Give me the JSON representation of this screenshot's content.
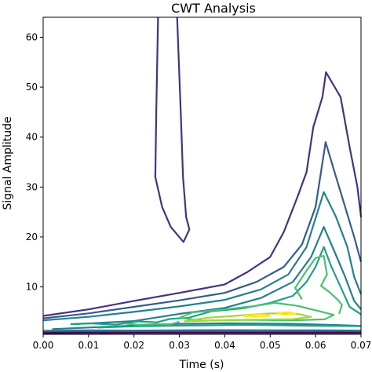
{
  "chart_data": {
    "type": "contour",
    "title": "CWT Analysis",
    "xlabel": "Time (s)",
    "ylabel": "Signal Amplitude",
    "xlim": [
      0.0,
      0.07
    ],
    "ylim": [
      0.5,
      64
    ],
    "xticks": [
      "0.00",
      "0.01",
      "0.02",
      "0.03",
      "0.04",
      "0.05",
      "0.06",
      "0.07"
    ],
    "yticks": [
      "10",
      "20",
      "30",
      "40",
      "50",
      "60"
    ],
    "colormap": "viridis",
    "grid": false,
    "levels": [
      {
        "color": "#46327e",
        "lines": [
          [
            [
              0.0,
              4.2
            ],
            [
              0.01,
              5.5
            ],
            [
              0.02,
              7.2
            ],
            [
              0.03,
              8.8
            ],
            [
              0.04,
              10.5
            ],
            [
              0.045,
              13
            ],
            [
              0.05,
              16
            ],
            [
              0.053,
              21
            ],
            [
              0.056,
              28
            ],
            [
              0.058,
              33
            ],
            [
              0.0595,
              42
            ],
            [
              0.0615,
              48
            ],
            [
              0.0623,
              53
            ],
            [
              0.0655,
              48
            ],
            [
              0.0675,
              38
            ],
            [
              0.0692,
              30
            ],
            [
              0.07,
              24
            ]
          ],
          [
            [
              0.0253,
              64
            ],
            [
              0.0249,
              45
            ],
            [
              0.0247,
              32
            ],
            [
              0.0262,
              26
            ],
            [
              0.0281,
              22
            ],
            [
              0.0309,
              19
            ],
            [
              0.0322,
              21.5
            ],
            [
              0.0315,
              24
            ],
            [
              0.0308,
              32
            ],
            [
              0.0303,
              45
            ],
            [
              0.0295,
              64
            ]
          ]
        ]
      },
      {
        "color": "#365c8d",
        "lines": [
          [
            [
              0.0,
              3.7
            ],
            [
              0.01,
              4.7
            ],
            [
              0.02,
              6.0
            ],
            [
              0.03,
              7.3
            ],
            [
              0.04,
              8.8
            ],
            [
              0.047,
              11.0
            ],
            [
              0.053,
              14.0
            ],
            [
              0.057,
              18.5
            ],
            [
              0.06,
              26.0
            ],
            [
              0.0622,
              39.0
            ],
            [
              0.0645,
              32.0
            ],
            [
              0.0665,
              26.0
            ],
            [
              0.0685,
              20.0
            ],
            [
              0.07,
              15.0
            ]
          ]
        ]
      },
      {
        "color": "#277f8e",
        "lines": [
          [
            [
              0.0,
              3.3
            ],
            [
              0.01,
              4.0
            ],
            [
              0.02,
              5.0
            ],
            [
              0.03,
              6.1
            ],
            [
              0.04,
              7.4
            ],
            [
              0.048,
              9.5
            ],
            [
              0.054,
              12.5
            ],
            [
              0.058,
              18.0
            ],
            [
              0.0618,
              29.0
            ],
            [
              0.0645,
              24.0
            ],
            [
              0.067,
              18.0
            ],
            [
              0.0685,
              12.0
            ],
            [
              0.07,
              8.5
            ]
          ],
          [
            [
              0.007,
              2.55
            ],
            [
              0.02,
              3.15
            ],
            [
              0.03,
              4.6
            ],
            [
              0.04,
              5.8
            ],
            [
              0.048,
              7.8
            ],
            [
              0.055,
              11.0
            ],
            [
              0.059,
              16.0
            ],
            [
              0.0618,
              22.0
            ],
            [
              0.0642,
              17.0
            ],
            [
              0.0665,
              12.0
            ],
            [
              0.0685,
              7.2
            ],
            [
              0.07,
              5.5
            ]
          ],
          [
            [
              0.002,
              1.55
            ],
            [
              0.02,
              2.25
            ],
            [
              0.03,
              2.6
            ],
            [
              0.04,
              2.7
            ],
            [
              0.055,
              2.6
            ],
            [
              0.065,
              2.35
            ],
            [
              0.07,
              2.2
            ]
          ]
        ]
      },
      {
        "color": "#1fa187",
        "lines": [
          [
            [
              0.006,
              2.55
            ],
            [
              0.01,
              2.7
            ],
            [
              0.016,
              2.45
            ],
            [
              0.021,
              3.1
            ],
            [
              0.025,
              2.9
            ],
            [
              0.028,
              3.6
            ],
            [
              0.032,
              3.8
            ],
            [
              0.037,
              5.1
            ],
            [
              0.044,
              5.7
            ],
            [
              0.05,
              6.8
            ],
            [
              0.055,
              8.2
            ],
            [
              0.058,
              11.0
            ],
            [
              0.06,
              14.0
            ],
            [
              0.0618,
              18.0
            ],
            [
              0.0635,
              14.0
            ],
            [
              0.0655,
              10.0
            ],
            [
              0.0675,
              6.0
            ],
            [
              0.07,
              4.5
            ]
          ],
          [
            [
              0.012,
              1.85
            ],
            [
              0.02,
              2.1
            ],
            [
              0.03,
              2.25
            ],
            [
              0.045,
              2.4
            ],
            [
              0.06,
              2.2
            ],
            [
              0.07,
              2.15
            ]
          ]
        ]
      },
      {
        "color": "#4ac16d",
        "lines": [
          [
            [
              0.057,
              7.5
            ],
            [
              0.0555,
              9.8
            ],
            [
              0.0578,
              13.0
            ],
            [
              0.06,
              15.8
            ],
            [
              0.0618,
              16.2
            ],
            [
              0.0625,
              12.5
            ],
            [
              0.0612,
              10.2
            ],
            [
              0.063,
              9.0
            ],
            [
              0.065,
              7.3
            ],
            [
              0.0658,
              6.4
            ],
            [
              0.0652,
              4.6
            ]
          ],
          [
            [
              0.03,
              3.8
            ],
            [
              0.033,
              4.9
            ],
            [
              0.04,
              5.5
            ],
            [
              0.046,
              6.1
            ],
            [
              0.051,
              6.8
            ],
            [
              0.056,
              6.2
            ],
            [
              0.0605,
              5.2
            ],
            [
              0.064,
              4.4
            ],
            [
              0.062,
              3.5
            ],
            [
              0.055,
              3.3
            ],
            [
              0.045,
              3.4
            ],
            [
              0.035,
              3.25
            ],
            [
              0.03,
              3.8
            ]
          ],
          [
            [
              0.018,
              2.65
            ],
            [
              0.021,
              2.4
            ],
            [
              0.025,
              2.55
            ],
            [
              0.028,
              2.5
            ],
            [
              0.03,
              3.0
            ]
          ]
        ]
      },
      {
        "color": "#a0da39",
        "lines": [
          [
            [
              0.031,
              3.1
            ],
            [
              0.036,
              3.8
            ],
            [
              0.042,
              4.2
            ],
            [
              0.05,
              4.7
            ],
            [
              0.056,
              4.6
            ],
            [
              0.059,
              4.0
            ],
            [
              0.055,
              3.55
            ],
            [
              0.047,
              3.45
            ],
            [
              0.038,
              3.3
            ],
            [
              0.031,
              3.1
            ]
          ]
        ]
      },
      {
        "color": "#fde725",
        "lines": [
          [
            [
              0.044,
              4.2
            ],
            [
              0.048,
              4.5
            ],
            [
              0.05,
              4.25
            ],
            [
              0.047,
              4.0
            ],
            [
              0.044,
              4.2
            ]
          ],
          [
            [
              0.0515,
              4.8
            ],
            [
              0.054,
              4.9
            ],
            [
              0.0555,
              4.6
            ],
            [
              0.053,
              4.4
            ],
            [
              0.0515,
              4.8
            ]
          ]
        ]
      },
      {
        "color": "#2a788e",
        "lines": [
          [
            [
              0.0,
              1.2
            ],
            [
              0.01,
              1.3
            ],
            [
              0.02,
              1.25
            ],
            [
              0.03,
              1.3
            ],
            [
              0.04,
              1.35
            ],
            [
              0.05,
              1.3
            ],
            [
              0.06,
              1.3
            ],
            [
              0.07,
              1.25
            ]
          ]
        ]
      },
      {
        "color": "#3b528b",
        "lines": [
          [
            [
              0.0,
              0.95
            ],
            [
              0.01,
              1.0
            ],
            [
              0.02,
              1.0
            ],
            [
              0.03,
              1.05
            ],
            [
              0.04,
              1.05
            ],
            [
              0.05,
              1.0
            ],
            [
              0.06,
              1.05
            ],
            [
              0.07,
              1.0
            ]
          ]
        ]
      },
      {
        "color": "#440154",
        "lines": [
          [
            [
              0.0,
              0.75
            ],
            [
              0.02,
              0.8
            ],
            [
              0.04,
              0.8
            ],
            [
              0.06,
              0.8
            ],
            [
              0.07,
              0.78
            ]
          ]
        ]
      }
    ]
  }
}
